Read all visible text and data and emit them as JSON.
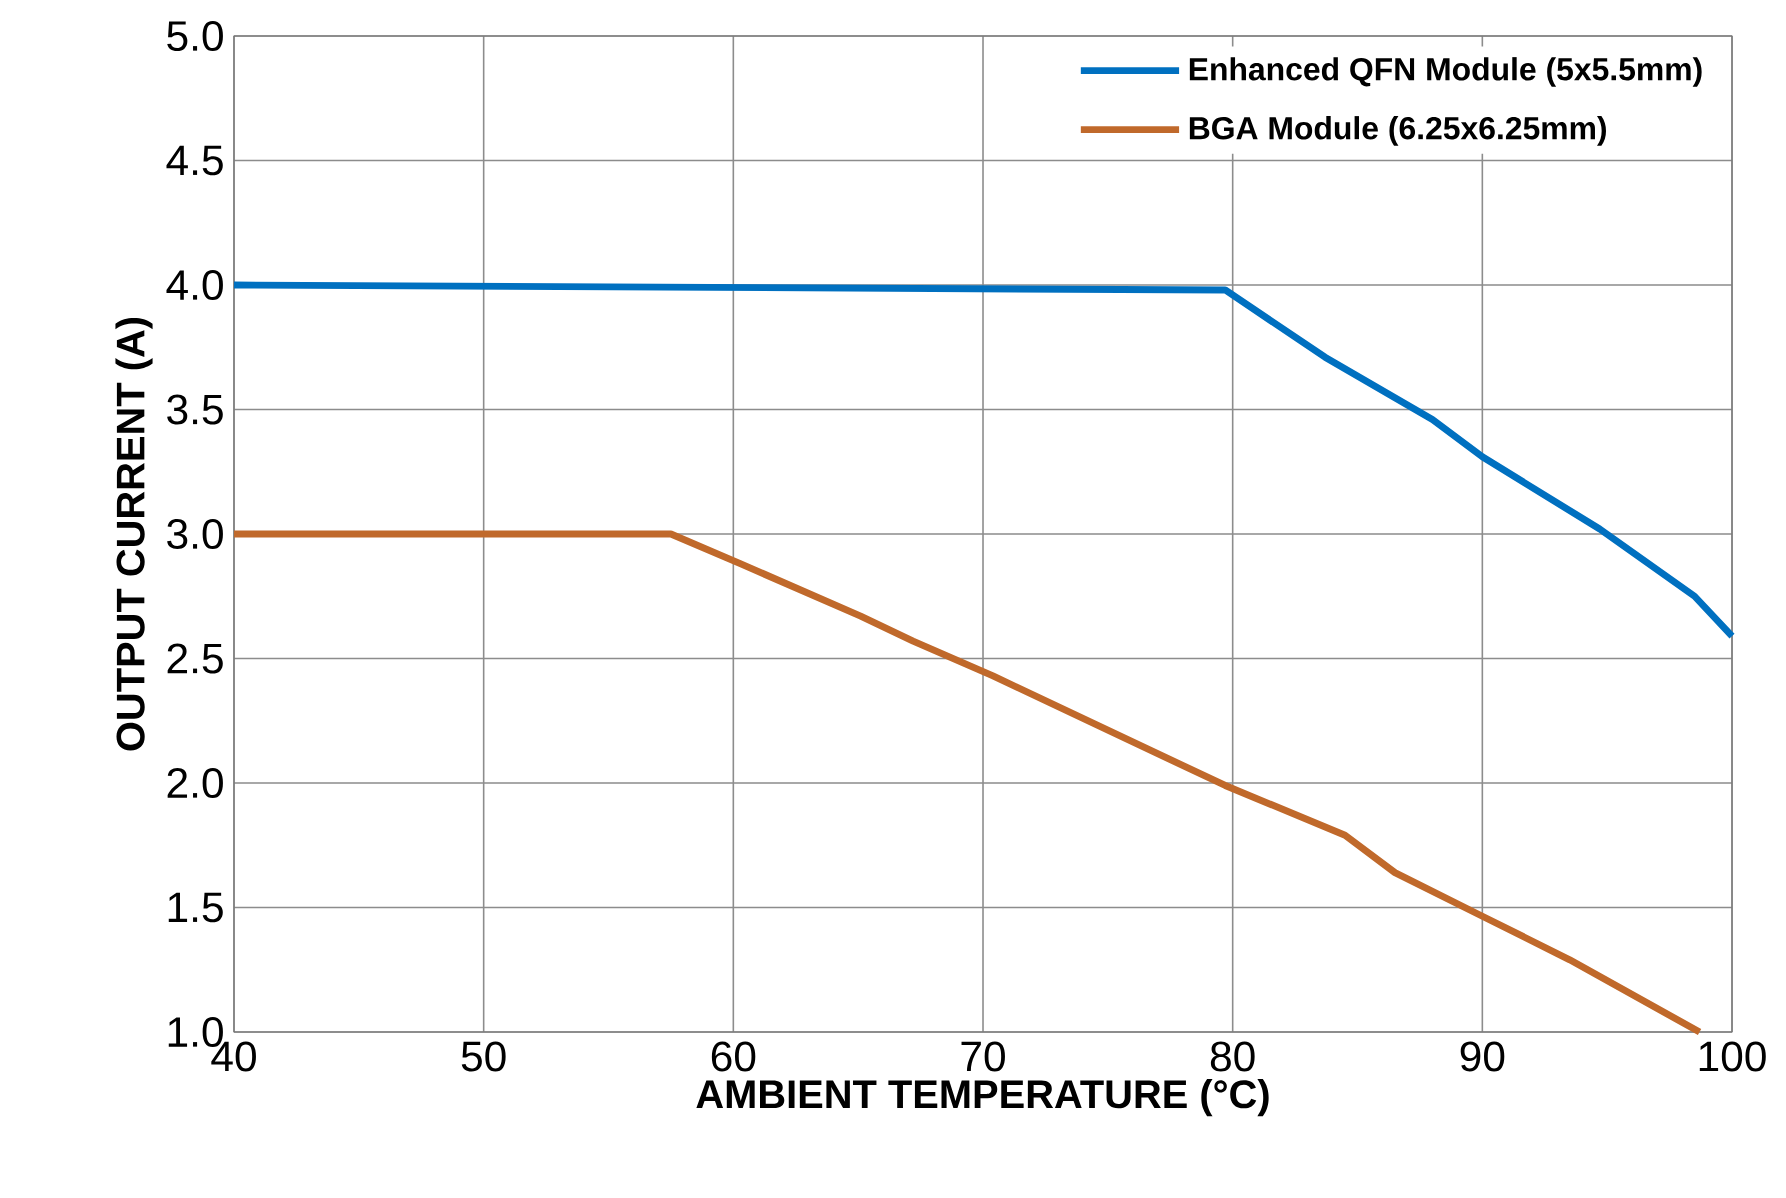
{
  "chart_data": {
    "type": "line",
    "xlabel": "AMBIENT TEMPERATURE (°C)",
    "ylabel": "OUTPUT CURRENT (A)",
    "xlim": [
      40,
      100
    ],
    "ylim": [
      1.0,
      5.0
    ],
    "xticks": [
      40,
      50,
      60,
      70,
      80,
      90,
      100
    ],
    "yticks": [
      {
        "value": 1.0,
        "label": "1.0"
      },
      {
        "value": 1.5,
        "label": "1.5"
      },
      {
        "value": 2.0,
        "label": "2.0"
      },
      {
        "value": 2.5,
        "label": "2.5"
      },
      {
        "value": 3.0,
        "label": "3.0"
      },
      {
        "value": 3.5,
        "label": "3.5"
      },
      {
        "value": 4.0,
        "label": "4.0"
      },
      {
        "value": 4.5,
        "label": "4.5"
      },
      {
        "value": 5.0,
        "label": "5.0"
      }
    ],
    "grid": true,
    "legend": "top right",
    "marker": "none",
    "line_style": "solid",
    "series": [
      {
        "name": "Enhanced QFN Module (5x5.5mm)",
        "color": "#0070c0",
        "x": [
          40,
          79.7,
          83.7,
          88,
          90,
          94.7,
          98.5,
          100
        ],
        "values": [
          4.0,
          3.98,
          3.71,
          3.46,
          3.31,
          3.02,
          2.75,
          2.59
        ]
      },
      {
        "name": "BGA Module (6.25x6.25mm)",
        "color": "#c0692b",
        "x": [
          40,
          57.5,
          60.3,
          65.1,
          67.2,
          70.4,
          79.7,
          84.5,
          86.5,
          89.9,
          93.5,
          98.7
        ],
        "values": [
          3.0,
          3.0,
          2.88,
          2.67,
          2.57,
          2.43,
          1.99,
          1.79,
          1.64,
          1.47,
          1.29,
          1.0
        ]
      }
    ]
  }
}
